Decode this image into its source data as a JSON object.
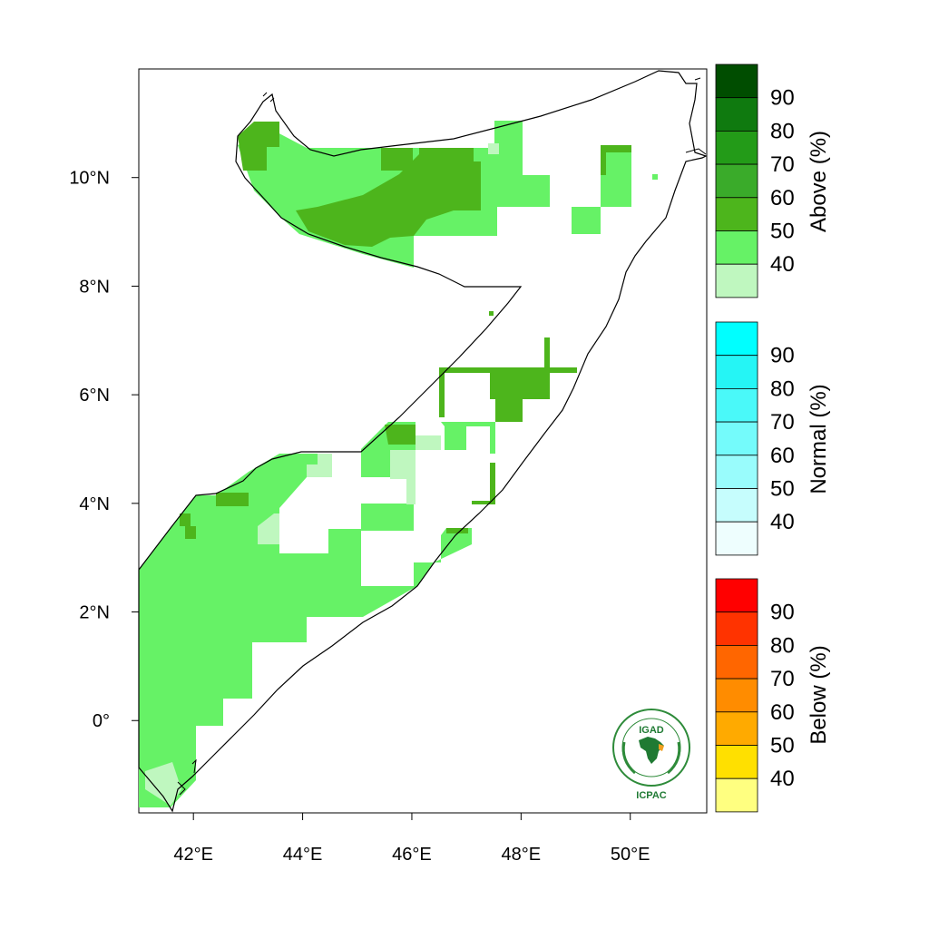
{
  "map": {
    "longitude_ticks": [
      "42°E",
      "44°E",
      "46°E",
      "48°E",
      "50°E"
    ],
    "latitude_ticks": [
      "10°N",
      "8°N",
      "6°N",
      "4°N",
      "2°N",
      "0°"
    ],
    "longitude_range": [
      41.0,
      51.4
    ],
    "latitude_range": [
      -1.7,
      12.0
    ]
  },
  "legend": {
    "above": {
      "title": "Above (%)",
      "labels": [
        "90",
        "80",
        "70",
        "60",
        "50",
        "40"
      ],
      "colors": [
        "#004d00",
        "#0f7a0f",
        "#239b18",
        "#3aab2a",
        "#4db51c",
        "#66f266",
        "#bff7bf"
      ]
    },
    "normal": {
      "title": "Normal (%)",
      "labels": [
        "90",
        "80",
        "70",
        "60",
        "50",
        "40"
      ],
      "colors": [
        "#00ffff",
        "#25f5f5",
        "#4af9f9",
        "#74fbfb",
        "#99fcfc",
        "#c6fdfd",
        "#eefefe"
      ]
    },
    "below": {
      "title": "Below (%)",
      "labels": [
        "90",
        "80",
        "70",
        "60",
        "50",
        "40"
      ],
      "colors": [
        "#ff0000",
        "#ff3300",
        "#ff6600",
        "#ff8c00",
        "#ffaa00",
        "#ffe000",
        "#ffff80"
      ]
    }
  },
  "logo": {
    "name": "IGAD",
    "org": "ICPAC",
    "ring_text": "INTERGOVERNMENTAL AUTHORITY ON DEVELOPMENT"
  }
}
